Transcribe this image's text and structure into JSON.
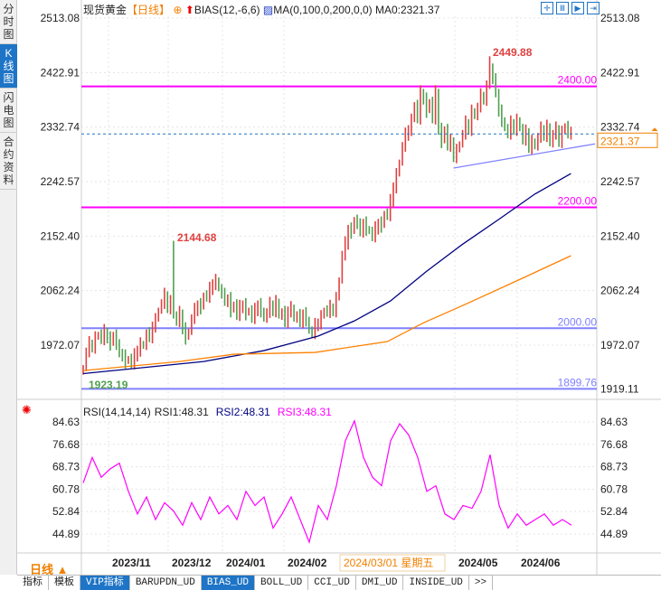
{
  "sidebar": {
    "items": [
      {
        "label": "分时图"
      },
      {
        "label": "K线图",
        "active": true
      },
      {
        "label": "闪电图"
      },
      {
        "label": "合约资料"
      }
    ]
  },
  "header": {
    "symbol": "现货黄金",
    "period": "【日线】",
    "bias": "BIAS(12,-6,6)",
    "ma": "MA(0,100,0,200,0,0)",
    "ma0": "MA0:2321.37"
  },
  "toolbar_icons": [
    "crosshair-icon",
    "zoom-range-icon",
    "play-icon",
    "step-forward-icon"
  ],
  "price_axis": {
    "ticks": [
      "2513.08",
      "2422.91",
      "2332.74",
      "2242.57",
      "2152.40",
      "2062.24",
      "1972.07"
    ],
    "right_extra": "1919.11",
    "current": "2321.37"
  },
  "annotations": {
    "high": "2449.88",
    "mid_high": "2144.68",
    "low": "1923.19"
  },
  "levels": [
    {
      "value": 2400,
      "label": "2400.00",
      "color": "#ff00ff"
    },
    {
      "value": 2200,
      "label": "2200.00",
      "color": "#ff00ff"
    },
    {
      "value": 2000,
      "label": "2000.00",
      "color": "#8080ff"
    },
    {
      "value": 1899.76,
      "label": "1899.76",
      "color": "#8080ff"
    }
  ],
  "colors": {
    "up": "#e04040",
    "down": "#50a050",
    "ma100": "#000080",
    "ma200": "#ff8000",
    "rsi": "#ff00ff",
    "trend": "#8080ff"
  },
  "chart_data": {
    "type": "candlestick",
    "ylim": [
      1899.76,
      2513.08
    ],
    "closes": [
      1935,
      1960,
      1975,
      1970,
      1985,
      1990,
      1980,
      1995,
      1985,
      1975,
      1990,
      1970,
      1960,
      1955,
      1945,
      1950,
      1940,
      1955,
      1965,
      1975,
      1970,
      1990,
      1985,
      2005,
      2015,
      2030,
      2040,
      2055,
      2035,
      2045,
      2020,
      2010,
      2025,
      2000,
      1985,
      1995,
      2015,
      2030,
      2040,
      2035,
      2055,
      2050,
      2065,
      2075,
      2080,
      2065,
      2055,
      2045,
      2050,
      2030,
      2040,
      2020,
      2035,
      2040,
      2025,
      2030,
      2015,
      2030,
      2040,
      2030,
      2015,
      2025,
      2040,
      2030,
      2045,
      2020,
      2025,
      2010,
      2030,
      2035,
      2015,
      2020,
      2010,
      2025,
      2015,
      1995,
      1990,
      2005,
      2010,
      2020,
      2030,
      2025,
      2035,
      2030,
      2050,
      2080,
      2120,
      2140,
      2165,
      2160,
      2180,
      2170,
      2160,
      2175,
      2165,
      2160,
      2150,
      2165,
      2175,
      2170,
      2190,
      2185,
      2210,
      2235,
      2255,
      2275,
      2300,
      2320,
      2330,
      2345,
      2370,
      2345,
      2390,
      2380,
      2360,
      2375,
      2345,
      2390,
      2330,
      2310,
      2330,
      2300,
      2310,
      2285,
      2295,
      2305,
      2320,
      2340,
      2330,
      2360,
      2350,
      2365,
      2385,
      2380,
      2400,
      2430,
      2410,
      2390,
      2360,
      2345,
      2330,
      2320,
      2340,
      2330,
      2345,
      2330,
      2310,
      2325,
      2300,
      2310,
      2300,
      2315,
      2330,
      2320,
      2335,
      2305,
      2320,
      2330,
      2310,
      2325,
      2335,
      2320,
      2321.37
    ],
    "ma100": [
      [
        0,
        1925
      ],
      [
        40,
        1945
      ],
      [
        60,
        1963
      ],
      [
        78,
        1987
      ],
      [
        90,
        2012
      ],
      [
        102,
        2045
      ],
      [
        114,
        2094
      ],
      [
        126,
        2139
      ],
      [
        138,
        2180
      ],
      [
        150,
        2222
      ],
      [
        162,
        2256
      ]
    ],
    "ma200": [
      [
        0,
        1930
      ],
      [
        32,
        1945
      ],
      [
        50,
        1957
      ],
      [
        77,
        1960
      ],
      [
        101,
        1978
      ],
      [
        113,
        2009
      ],
      [
        128,
        2042
      ],
      [
        146,
        2083
      ],
      [
        162,
        2120
      ]
    ],
    "trendline": [
      [
        123,
        2265
      ],
      [
        170,
        2305
      ]
    ],
    "spikes": [
      {
        "index": 30,
        "high": 2144.68
      },
      {
        "index": 135,
        "high": 2449.88
      },
      {
        "index": 0,
        "low": 1923.19
      }
    ]
  },
  "rsi": {
    "title": "RSI(14,14,14)",
    "rsi1": "RSI1:48.31",
    "rsi2": "RSI2:48.31",
    "rsi3": "RSI3:48.31",
    "ticks": [
      "84.63",
      "76.68",
      "68.73",
      "60.78",
      "52.84",
      "44.89"
    ],
    "values": [
      63,
      72,
      65,
      68,
      70,
      60,
      52,
      58,
      50,
      56,
      53,
      48,
      56,
      50,
      58,
      52,
      55,
      50,
      60,
      55,
      58,
      47,
      52,
      58,
      50,
      42,
      55,
      50,
      62,
      78,
      85,
      72,
      65,
      62,
      78,
      84,
      80,
      72,
      60,
      62,
      52,
      50,
      55,
      54,
      60,
      73,
      55,
      47,
      52,
      48,
      50,
      52,
      48,
      50,
      48
    ]
  },
  "date_axis": {
    "period": "日线",
    "labels": [
      "2023/11",
      "2023/12",
      "2024/01",
      "2024/02",
      "2024/05",
      "2024/06"
    ],
    "cursor_date": "2024/03/01 星期五"
  },
  "bottom_tabs": [
    "指标",
    "模板",
    "VIP指标",
    "BARUPDN_UD",
    "BIAS_UD",
    "BOLL_UD",
    "CCI_UD",
    "DMI_UD",
    "INSIDE_UD",
    ">>"
  ]
}
